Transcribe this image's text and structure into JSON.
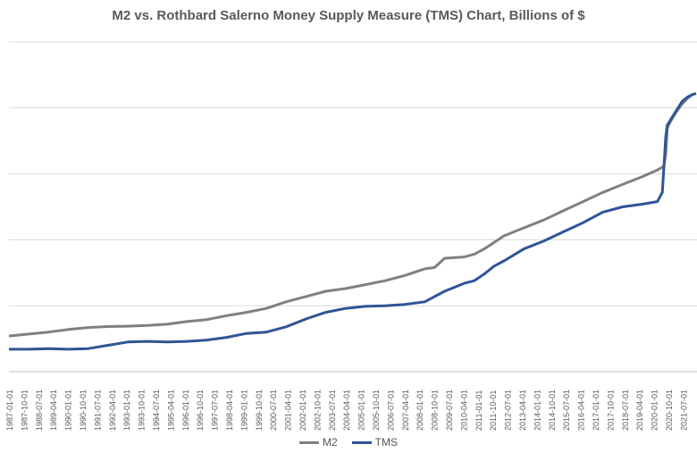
{
  "chart_data": {
    "type": "line",
    "title": "M2 vs. Rothbard Salerno Money Supply Measure (TMS) Chart, Billions of $",
    "xlabel": "",
    "ylabel": "",
    "grid": true,
    "legend_position": "bottom",
    "x_tick_labels": [
      "1987-01-01",
      "1987-10-01",
      "1988-07-01",
      "1989-04-01",
      "1990-01-01",
      "1990-10-01",
      "1991-07-01",
      "1992-04-01",
      "1993-01-01",
      "1993-10-01",
      "1994-07-01",
      "1995-04-01",
      "1996-01-01",
      "1996-10-01",
      "1997-07-01",
      "1998-04-01",
      "1999-01-01",
      "1999-10-01",
      "2000-07-01",
      "2001-04-01",
      "2002-01-01",
      "2002-10-01",
      "2003-07-01",
      "2004-04-01",
      "2005-01-01",
      "2005-10-01",
      "2006-07-01",
      "2007-04-01",
      "2008-01-01",
      "2008-10-01",
      "2009-07-01",
      "2010-04-01",
      "2011-01-01",
      "2011-10-01",
      "2012-07-01",
      "2013-04-01",
      "2014-01-01",
      "2014-10-01",
      "2015-07-01",
      "2016-04-01",
      "2017-01-01",
      "2017-10-01",
      "2018-07-01",
      "2019-04-01",
      "2020-01-01",
      "2020-10-01",
      "2021-07-01"
    ],
    "ylim": [
      0,
      25000
    ],
    "series": [
      {
        "name": "M2",
        "color": "#808080",
        "x": [
          1987.0,
          1988.0,
          1989.0,
          1990.0,
          1991.0,
          1992.0,
          1993.0,
          1994.0,
          1995.0,
          1996.0,
          1997.0,
          1998.0,
          1999.0,
          2000.0,
          2001.0,
          2002.0,
          2003.0,
          2004.0,
          2005.0,
          2006.0,
          2007.0,
          2008.0,
          2008.5,
          2009.0,
          2010.0,
          2010.5,
          2011.0,
          2011.5,
          2012.0,
          2013.0,
          2014.0,
          2015.0,
          2016.0,
          2017.0,
          2018.0,
          2019.0,
          2019.75,
          2020.0,
          2020.08,
          2020.17,
          2020.25,
          2020.5,
          2020.75,
          2021.0,
          2021.25,
          2021.5,
          2021.7
        ],
        "y": [
          2700,
          2850,
          3000,
          3200,
          3350,
          3420,
          3450,
          3500,
          3600,
          3800,
          3950,
          4250,
          4500,
          4800,
          5300,
          5700,
          6100,
          6300,
          6600,
          6900,
          7300,
          7800,
          7900,
          8600,
          8700,
          8900,
          9300,
          9800,
          10300,
          10900,
          11500,
          12200,
          12900,
          13600,
          14200,
          14800,
          15300,
          15500,
          15600,
          16500,
          18500,
          19200,
          19800,
          20300,
          20700,
          21000,
          21100
        ]
      },
      {
        "name": "TMS",
        "color": "#2F5597",
        "x": [
          1987.0,
          1988.0,
          1989.0,
          1990.0,
          1991.0,
          1992.0,
          1993.0,
          1994.0,
          1995.0,
          1996.0,
          1997.0,
          1998.0,
          1999.0,
          2000.0,
          2001.0,
          2002.0,
          2003.0,
          2004.0,
          2005.0,
          2006.0,
          2007.0,
          2008.0,
          2008.5,
          2009.0,
          2010.0,
          2010.5,
          2011.0,
          2011.5,
          2012.0,
          2013.0,
          2014.0,
          2015.0,
          2016.0,
          2017.0,
          2018.0,
          2019.0,
          2019.75,
          2020.0,
          2020.08,
          2020.17,
          2020.25,
          2020.5,
          2020.75,
          2021.0,
          2021.25,
          2021.5,
          2021.7
        ],
        "y": [
          1700,
          1700,
          1750,
          1700,
          1750,
          2000,
          2250,
          2300,
          2250,
          2300,
          2400,
          2600,
          2900,
          3000,
          3400,
          4000,
          4500,
          4800,
          4950,
          5000,
          5100,
          5300,
          5700,
          6100,
          6700,
          6900,
          7400,
          8000,
          8400,
          9300,
          9900,
          10600,
          11300,
          12100,
          12500,
          12700,
          12900,
          13600,
          15500,
          17800,
          18700,
          19300,
          19900,
          20500,
          20800,
          21000,
          21100
        ]
      }
    ]
  }
}
